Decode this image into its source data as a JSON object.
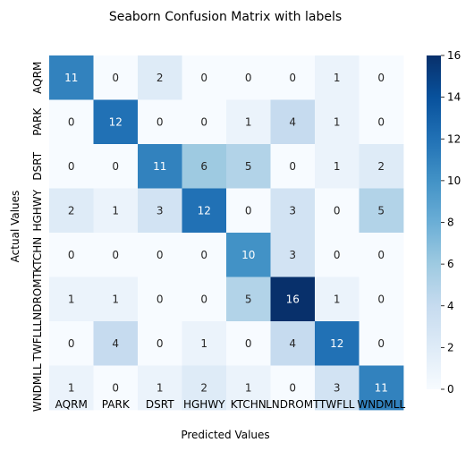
{
  "chart_data": {
    "type": "heatmap",
    "title": "Seaborn Confusion Matrix with labels",
    "xlabel": "Predicted Values",
    "ylabel": "Actual Values",
    "x_categories": [
      "AQRM",
      "PARK",
      "DSRT",
      "HGHWY",
      "KTCHN",
      "LNDROMT",
      "TWFLL",
      "WNDMLL"
    ],
    "y_categories": [
      "AQRM",
      "PARK",
      "DSRT",
      "HGHWY",
      "KTCHN",
      "LNDROMT",
      "TWFLL",
      "WNDMLL"
    ],
    "values": [
      [
        11,
        0,
        2,
        0,
        0,
        0,
        1,
        0
      ],
      [
        0,
        12,
        0,
        0,
        1,
        4,
        1,
        0
      ],
      [
        0,
        0,
        11,
        6,
        5,
        0,
        1,
        2
      ],
      [
        2,
        1,
        3,
        12,
        0,
        3,
        0,
        5
      ],
      [
        0,
        0,
        0,
        0,
        10,
        3,
        0,
        0
      ],
      [
        1,
        1,
        0,
        0,
        5,
        16,
        1,
        0
      ],
      [
        0,
        4,
        0,
        1,
        0,
        4,
        12,
        0
      ],
      [
        1,
        0,
        1,
        2,
        1,
        0,
        3,
        11
      ]
    ],
    "colorbar_range": [
      0,
      16
    ],
    "colorbar_ticks": [
      "0",
      "2",
      "4",
      "6",
      "8",
      "10",
      "12",
      "14",
      "16"
    ],
    "colormap": "Blues"
  }
}
